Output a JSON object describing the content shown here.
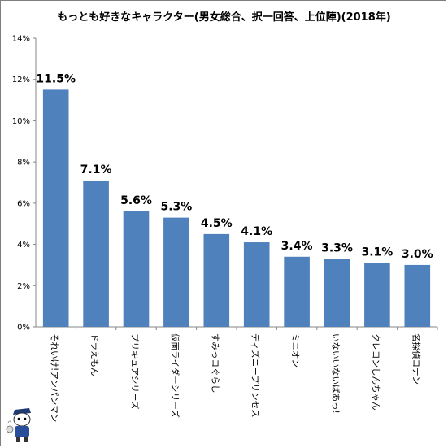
{
  "chart_data": {
    "type": "bar",
    "title": "もっとも好きなキャラクター(男女総合、択一回答、上位陣)(2018年)",
    "categories": [
      "それいけ!アンパンマン",
      "ドラえもん",
      "プリキュアシリーズ",
      "仮面ライダーシリーズ",
      "すみっコぐらし",
      "ディズニープリンセス",
      "ミニオン",
      "いないいないばあっ!",
      "クレヨンしんちゃん",
      "名探偵コナン"
    ],
    "values": [
      11.5,
      7.1,
      5.6,
      5.3,
      4.5,
      4.1,
      3.4,
      3.3,
      3.1,
      3.0
    ],
    "data_labels": [
      "11.5%",
      "7.1%",
      "5.6%",
      "5.3%",
      "4.5%",
      "4.1%",
      "3.4%",
      "3.3%",
      "3.1%",
      "3.0%"
    ],
    "yticks": [
      0,
      2,
      4,
      6,
      8,
      10,
      12,
      14
    ],
    "ytick_labels": [
      "0%",
      "2%",
      "4%",
      "6%",
      "8%",
      "10%",
      "12%",
      "14%"
    ],
    "ylim": [
      0,
      14
    ],
    "xlabel": "",
    "ylabel": "",
    "grid": false,
    "bar_color": "#4f81bd"
  }
}
